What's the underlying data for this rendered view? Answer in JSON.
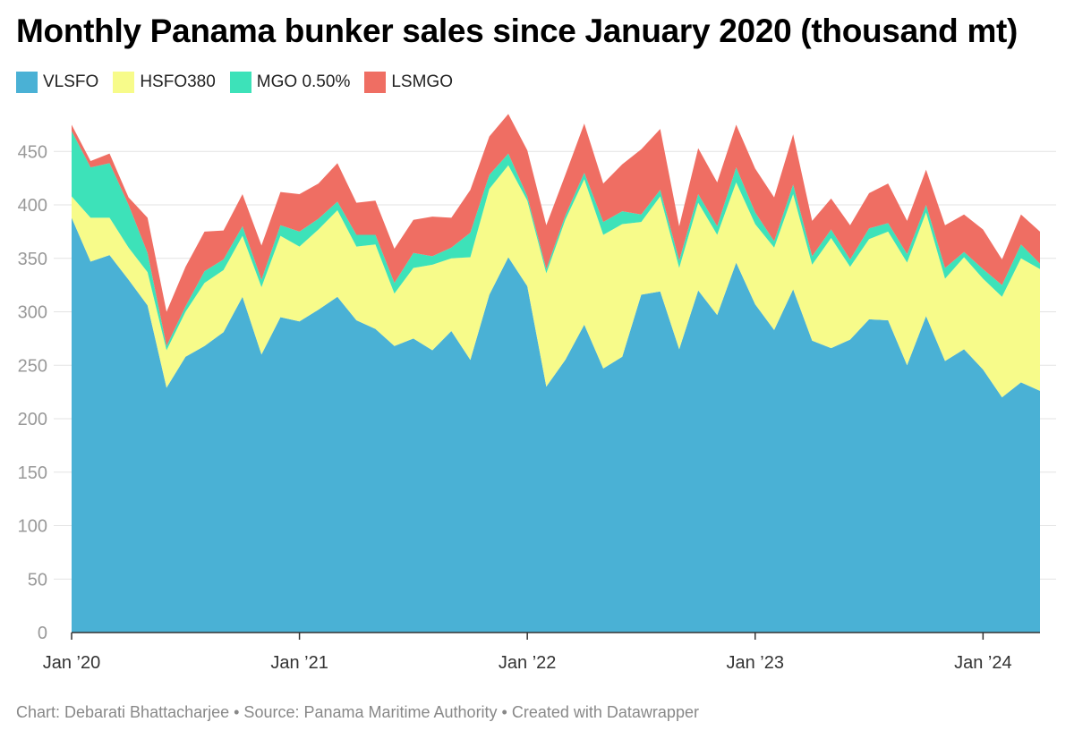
{
  "title": "Monthly Panama bunker sales since January 2020 (thousand mt)",
  "footer": "Chart: Debarati Bhattacharjee • Source: Panama Maritime Authority • Created with Datawrapper",
  "chart_data": {
    "type": "area",
    "stacked": true,
    "title": "Monthly Panama bunker sales since January 2020 (thousand mt)",
    "xlabel": "",
    "ylabel": "",
    "ylim": [
      0,
      475
    ],
    "yticks": [
      0,
      50,
      100,
      150,
      200,
      250,
      300,
      350,
      400,
      450
    ],
    "xtick_labels": [
      "Jan ’20",
      "Jan ’21",
      "Jan ’22",
      "Jan ’23",
      "Jan ’24"
    ],
    "xtick_index": [
      0,
      12,
      24,
      36,
      48
    ],
    "grid": true,
    "legend_position": "top-left",
    "x": [
      "2020-01",
      "2020-02",
      "2020-03",
      "2020-04",
      "2020-05",
      "2020-06",
      "2020-07",
      "2020-08",
      "2020-09",
      "2020-10",
      "2020-11",
      "2020-12",
      "2021-01",
      "2021-02",
      "2021-03",
      "2021-04",
      "2021-05",
      "2021-06",
      "2021-07",
      "2021-08",
      "2021-09",
      "2021-10",
      "2021-11",
      "2021-12",
      "2022-01",
      "2022-02",
      "2022-03",
      "2022-04",
      "2022-05",
      "2022-06",
      "2022-07",
      "2022-08",
      "2022-09",
      "2022-10",
      "2022-11",
      "2022-12",
      "2023-01",
      "2023-02",
      "2023-03",
      "2023-04",
      "2023-05",
      "2023-06",
      "2023-07",
      "2023-08",
      "2023-09",
      "2023-10",
      "2023-11",
      "2023-12",
      "2024-01",
      "2024-02",
      "2024-03",
      "2024-04"
    ],
    "series": [
      {
        "name": "VLSFO",
        "color": "#4ab1d5",
        "values": [
          388,
          347,
          353,
          330,
          306,
          229,
          258,
          268,
          281,
          314,
          260,
          295,
          291,
          302,
          314,
          292,
          284,
          268,
          275,
          264,
          282,
          255,
          316,
          351,
          324,
          230,
          255,
          288,
          247,
          258,
          316,
          319,
          265,
          320,
          297,
          346,
          307,
          283,
          321,
          273,
          266,
          274,
          293,
          292,
          250,
          296,
          254,
          265,
          246,
          220,
          234,
          226
        ]
      },
      {
        "name": "HSFO380",
        "color": "#f7fb8a",
        "values": [
          20,
          41,
          35,
          30,
          31,
          35,
          42,
          59,
          58,
          57,
          63,
          76,
          70,
          75,
          81,
          69,
          79,
          49,
          66,
          80,
          68,
          96,
          99,
          86,
          80,
          106,
          131,
          136,
          125,
          124,
          68,
          89,
          76,
          82,
          75,
          75,
          75,
          77,
          89,
          71,
          103,
          68,
          75,
          83,
          96,
          97,
          77,
          86,
          85,
          94,
          116,
          114
        ]
      },
      {
        "name": "MGO 0.50%",
        "color": "#3de2b9",
        "values": [
          61,
          47,
          51,
          40,
          18,
          4,
          5,
          11,
          10,
          9,
          7,
          10,
          14,
          10,
          8,
          11,
          9,
          10,
          14,
          8,
          10,
          23,
          13,
          11,
          4,
          4,
          4,
          6,
          12,
          12,
          7,
          6,
          7,
          8,
          8,
          14,
          11,
          6,
          9,
          8,
          8,
          7,
          10,
          8,
          8,
          7,
          10,
          5,
          9,
          11,
          13,
          5
        ]
      },
      {
        "name": "LSMGO",
        "color": "#ef6e63",
        "values": [
          6,
          6,
          9,
          7,
          33,
          32,
          37,
          37,
          27,
          30,
          32,
          31,
          35,
          33,
          36,
          30,
          32,
          32,
          31,
          37,
          28,
          40,
          36,
          37,
          43,
          41,
          38,
          46,
          36,
          44,
          61,
          57,
          32,
          43,
          41,
          40,
          41,
          41,
          47,
          33,
          29,
          32,
          33,
          37,
          31,
          33,
          40,
          35,
          37,
          24,
          28,
          30
        ]
      }
    ]
  }
}
